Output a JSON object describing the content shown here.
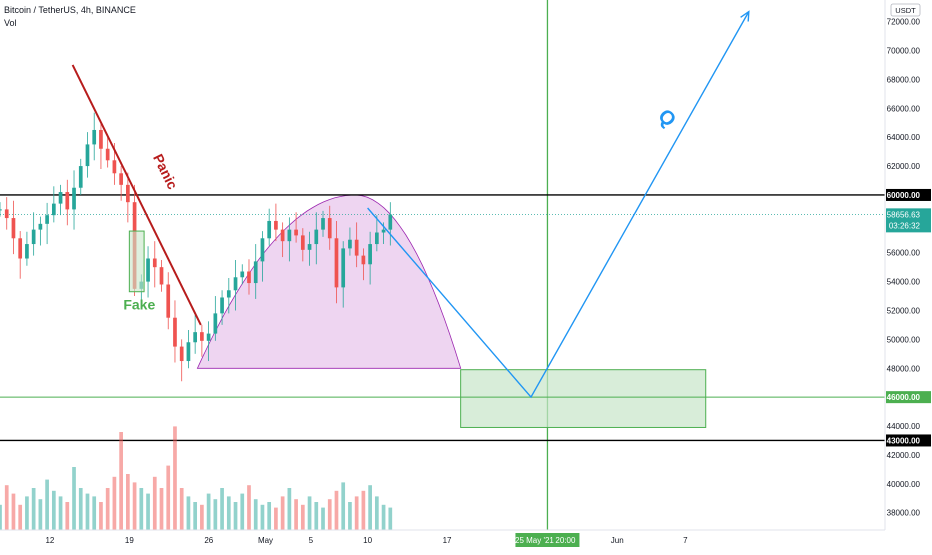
{
  "header": {
    "symbol_title": "Bitcoin / TetherUS, 4h, BINANCE",
    "indicator": "Vol",
    "currency": "USDT"
  },
  "chart_data": {
    "type": "candlestick",
    "price_ticks": [
      "72000.00",
      "70000.00",
      "68000.00",
      "66000.00",
      "64000.00",
      "62000.00",
      "60000.00",
      "58000.00",
      "56000.00",
      "54000.00",
      "52000.00",
      "50000.00",
      "48000.00",
      "46000.00",
      "44000.00",
      "42000.00",
      "40000.00",
      "38000.00"
    ],
    "price_tick_values": [
      72000,
      70000,
      68000,
      66000,
      64000,
      62000,
      60000,
      58000,
      56000,
      54000,
      52000,
      50000,
      48000,
      46000,
      44000,
      42000,
      40000,
      38000
    ],
    "ylim": [
      36800,
      73500
    ],
    "time_ticks": [
      "12",
      "19",
      "26",
      "May",
      "5",
      "10",
      "17",
      "Jun",
      "7"
    ],
    "time_tick_days": [
      12,
      19,
      26,
      31,
      35,
      40,
      47,
      62,
      68
    ],
    "xlim_days": [
      7.6,
      85.6
    ],
    "data_start_day": 7.6,
    "data_end_day": 42.0,
    "close_path": [
      59000,
      58400,
      57000,
      55600,
      56600,
      57600,
      58000,
      58600,
      59400,
      60200,
      59000,
      60500,
      62000,
      63500,
      64500,
      63200,
      62400,
      61500,
      60700,
      59500,
      53500,
      54000,
      55600,
      55000,
      53800,
      51500,
      49500,
      48500,
      49800,
      50500,
      49900,
      50400,
      51800,
      52900,
      53400,
      54300,
      54700,
      53900,
      55400,
      57000,
      58200,
      57600,
      56800,
      57600,
      57200,
      56200,
      56600,
      57600,
      58400,
      57000,
      53600,
      56300,
      56900,
      55800,
      55200,
      56600,
      57400,
      57600,
      58650
    ],
    "volume_levels": [
      0.18,
      0.32,
      0.26,
      0.18,
      0.24,
      0.3,
      0.22,
      0.36,
      0.28,
      0.24,
      0.2,
      0.45,
      0.3,
      0.26,
      0.24,
      0.2,
      0.3,
      0.38,
      0.7,
      0.4,
      0.34,
      0.3,
      0.26,
      0.38,
      0.3,
      0.46,
      0.74,
      0.3,
      0.24,
      0.2,
      0.18,
      0.26,
      0.22,
      0.3,
      0.24,
      0.2,
      0.26,
      0.32,
      0.22,
      0.18,
      0.2,
      0.16,
      0.24,
      0.3,
      0.22,
      0.18,
      0.24,
      0.2,
      0.16,
      0.22,
      0.28,
      0.34,
      0.2,
      0.24,
      0.28,
      0.32,
      0.24,
      0.18,
      0.16
    ],
    "current_price": "58656.63",
    "countdown": "03:26:32",
    "horizontal_levels": [
      {
        "value": 60000,
        "label": "60000.00",
        "color": "#000000"
      },
      {
        "value": 46000,
        "label": "46000.00",
        "color": "#4caf50"
      },
      {
        "value": 43000,
        "label": "43000.00",
        "color": "#000000"
      }
    ],
    "vertical_marker": {
      "day": 55.85,
      "date_label": "25 May '21",
      "time_label": "20:00",
      "color": "#4caf50"
    },
    "annotations": {
      "panic_label": "Panic",
      "fake_label": "Fake",
      "q_label": "Q",
      "panic_line": {
        "from": [
          14.0,
          69000
        ],
        "to": [
          25.3,
          51000
        ],
        "color": "#b71c1c"
      },
      "fake_box": {
        "x1": 19.0,
        "x2": 20.3,
        "y1": 53300,
        "y2": 57500,
        "color": "#4caf50"
      },
      "arc": {
        "day_from": 25.0,
        "day_peak": 38.9,
        "day_to": 48.2,
        "base": 48000,
        "peak": 60000,
        "color": "#9c27b0",
        "fill": "#e8c7ec"
      },
      "target_box": {
        "x1": 48.2,
        "x2": 69.8,
        "y1": 43900,
        "y2": 47900,
        "color": "#4caf50",
        "fill": "#c8e6c9"
      },
      "forecast_path": [
        [
          40.0,
          59100
        ],
        [
          54.4,
          46000
        ],
        [
          73.6,
          72700
        ]
      ],
      "forecast_color": "#2196f3"
    }
  }
}
